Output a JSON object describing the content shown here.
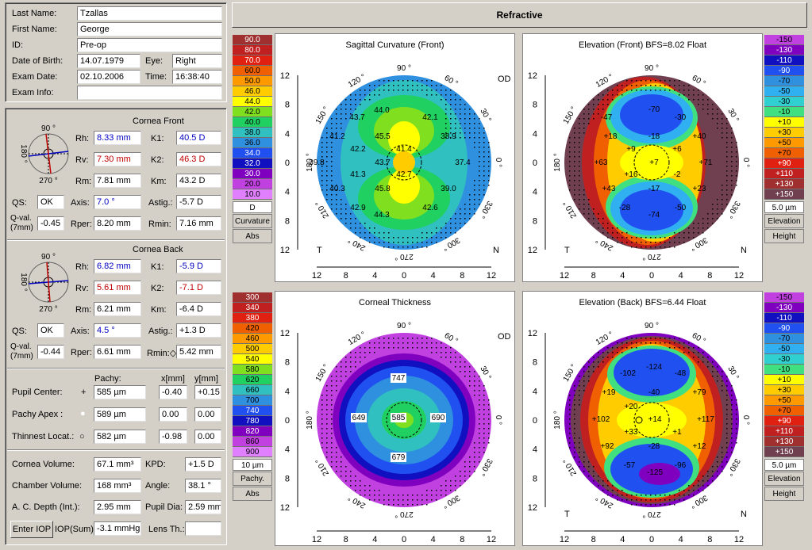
{
  "patient": {
    "last_name_label": "Last Name:",
    "last_name": "Tzallas",
    "first_name_label": "First Name:",
    "first_name": "George",
    "id_label": "ID:",
    "id": "Pre-op",
    "dob_label": "Date of Birth:",
    "dob": "14.07.1979",
    "eye_label": "Eye:",
    "eye": "Right",
    "exam_date_label": "Exam Date:",
    "exam_date": "02.10.2006",
    "time_label": "Time:",
    "time": "16:38:40",
    "exam_info_label": "Exam Info:",
    "exam_info": ""
  },
  "cornea_front": {
    "title": "Cornea Front",
    "rh_label": "Rh:",
    "rh": "8.33 mm",
    "rv_label": "Rv:",
    "rv": "7.30 mm",
    "rm_label": "Rm:",
    "rm": "7.81 mm",
    "k1_label": "K1:",
    "k1": "40.5 D",
    "k2_label": "K2:",
    "k2": "46.3 D",
    "km_label": "Km:",
    "km": "43.2 D",
    "qs_label": "QS:",
    "qs": "OK",
    "axis_label": "Axis:",
    "axis": "7.0 °",
    "astig_label": "Astig.:",
    "astig": "-5.7 D",
    "qval_label": "Q-val.",
    "qval_sub": "(7mm)",
    "qval": "-0.45",
    "rper_label": "Rper:",
    "rper": "8.20 mm",
    "rmin_label": "Rmin:",
    "rmin": "7.16 mm",
    "compass": {
      "top": "90 °",
      "left": "180 °",
      "bottom": "270 °"
    }
  },
  "cornea_back": {
    "title": "Cornea Back",
    "rh_label": "Rh:",
    "rh": "6.82 mm",
    "rv_label": "Rv:",
    "rv": "5.61 mm",
    "rm_label": "Rm:",
    "rm": "6.21 mm",
    "k1_label": "K1:",
    "k1": "-5.9 D",
    "k2_label": "K2:",
    "k2": "-7.1 D",
    "km_label": "Km:",
    "km": "-6.4 D",
    "qs_label": "QS:",
    "qs": "OK",
    "axis_label": "Axis:",
    "axis": "4.5 °",
    "astig_label": "Astig.:",
    "astig": "+1.3 D",
    "qval_label": "Q-val.",
    "qval_sub": "(7mm)",
    "qval": "-0.44",
    "rper_label": "Rper:",
    "rper": "6.61 mm",
    "rmin_label": "Rmin:◇",
    "rmin": "5.42 mm",
    "compass": {
      "top": "90 °",
      "left": "180 °",
      "bottom": "270 °"
    }
  },
  "pachy": {
    "col_pachy": "Pachy:",
    "col_x": "x[mm]",
    "col_y": "y[mm]",
    "pupil_label": "Pupil Center:",
    "pupil_mark": "+",
    "pupil_val": "585 µm",
    "pupil_x": "-0.40",
    "pupil_y": "+0.15",
    "apex_label": "Pachy Apex :",
    "apex_mark": "●",
    "apex_val": "589 µm",
    "apex_x": "0.00",
    "apex_y": "0.00",
    "thin_label": "Thinnest Locat.:",
    "thin_mark": "○",
    "thin_val": "582 µm",
    "thin_x": "-0.98",
    "thin_y": "0.00"
  },
  "volumes": {
    "cv_label": "Cornea Volume:",
    "cv": "67.1 mm³",
    "kpd_label": "KPD:",
    "kpd": "+1.5 D",
    "chv_label": "Chamber Volume:",
    "chv": "168 mm³",
    "angle_label": "Angle:",
    "angle": "38.1 °",
    "acd_label": "A. C. Depth (Int.):",
    "acd": "2.95 mm",
    "pupil_dia_label": "Pupil Dia:",
    "pupil_dia": "2.59 mm",
    "enter_iop": "Enter IOP",
    "iop_label": "IOP(Sum):",
    "iop": "-3.1 mmHg",
    "lens_label": "Lens Th.:",
    "lens": ""
  },
  "header": {
    "title": "Refractive"
  },
  "scales": {
    "curvature": {
      "values": [
        "90.0",
        "80.0",
        "70.0",
        "60.0",
        "50.0",
        "46.0",
        "44.0",
        "42.0",
        "40.0",
        "38.0",
        "36.0",
        "34.0",
        "32.0",
        "30.0",
        "20.0",
        "10.0"
      ],
      "unit": "D",
      "cap1": "Curvature",
      "cap2": "Abs",
      "colors": [
        "#a03030",
        "#c02020",
        "#e02010",
        "#f06000",
        "#ff9900",
        "#ffcc00",
        "#ffff00",
        "#80e020",
        "#20d060",
        "#30c0c0",
        "#3090e0",
        "#2050f0",
        "#1010c0",
        "#8000c0",
        "#c040e0",
        "#e080ff"
      ]
    },
    "elev_front": {
      "values": [
        "-150",
        "-130",
        "-110",
        "-90",
        "-70",
        "-50",
        "-30",
        "-10",
        "+10",
        "+30",
        "+50",
        "+70",
        "+90",
        "+110",
        "+130",
        "+150"
      ],
      "unit": "5.0 µm",
      "cap1": "Elevation",
      "cap2": "Height",
      "colors": [
        "#c040e0",
        "#8000c0",
        "#1010c0",
        "#2050f0",
        "#3090e0",
        "#30b0f0",
        "#30d0d0",
        "#40e080",
        "#ffff00",
        "#ffcc00",
        "#ff9900",
        "#f06000",
        "#e02010",
        "#c02020",
        "#a03030",
        "#704050"
      ]
    },
    "pachy": {
      "values": [
        "300",
        "340",
        "380",
        "420",
        "460",
        "500",
        "540",
        "580",
        "620",
        "660",
        "700",
        "740",
        "780",
        "820",
        "860",
        "900"
      ],
      "unit": "10 µm",
      "cap1": "Pachy.",
      "cap2": "Abs",
      "colors": [
        "#a03030",
        "#c02020",
        "#e02010",
        "#f06000",
        "#ff9900",
        "#ffcc00",
        "#ffff00",
        "#80e020",
        "#20d060",
        "#30c0c0",
        "#3090e0",
        "#2050f0",
        "#1010c0",
        "#8000c0",
        "#c040e0",
        "#e080ff"
      ]
    },
    "elev_back": {
      "values": [
        "-150",
        "-130",
        "-110",
        "-90",
        "-70",
        "-50",
        "-30",
        "-10",
        "+10",
        "+30",
        "+50",
        "+70",
        "+90",
        "+110",
        "+130",
        "+150"
      ],
      "unit": "5.0 µm",
      "cap1": "Elevation",
      "cap2": "Height",
      "colors": [
        "#c040e0",
        "#8000c0",
        "#1010c0",
        "#2050f0",
        "#3090e0",
        "#30b0f0",
        "#30d0d0",
        "#40e080",
        "#ffff00",
        "#ffcc00",
        "#ff9900",
        "#f06000",
        "#e02010",
        "#c02020",
        "#a03030",
        "#704050"
      ]
    }
  },
  "maps": {
    "sagittal": {
      "title": "Sagittal Curvature (Front)",
      "od": "OD",
      "t": "T",
      "n": "N",
      "labels": [
        "44.0",
        "43.7",
        "42.1",
        "41.2",
        "45.5",
        "38.9",
        "42.2",
        "41.4",
        "39.8",
        "43.7",
        "37.4",
        "41.3",
        "42.7",
        "40.3",
        "45.8",
        "39.0",
        "42.9",
        "42.6",
        "44.3"
      ]
    },
    "elev_front": {
      "title": "Elevation (Front)  BFS=8.02 Float",
      "t": "T",
      "n": "N",
      "labels": [
        "-70",
        "-47",
        "-30",
        "-18",
        "+18",
        "+9",
        "+6",
        "+40",
        "+63",
        "+7",
        "+71",
        "+16",
        "-2",
        "+43",
        "-17",
        "+23",
        "-28",
        "-50",
        "-74"
      ]
    },
    "pachy": {
      "title": "Corneal Thickness",
      "od": "OD",
      "labels": [
        "747",
        "649",
        "585",
        "690",
        "679"
      ]
    },
    "elev_back": {
      "title": "Elevation (Back)  BFS=6.44 Float",
      "t": "T",
      "n": "N",
      "labels": [
        "-124",
        "-102",
        "-48",
        "+19",
        "-40",
        "+79",
        "+20",
        "+14",
        "+102",
        "+117",
        "+33",
        "+1",
        "+92",
        "-28",
        "+12",
        "-57",
        "-96",
        "-125"
      ]
    },
    "axes": {
      "deg90": "90 °",
      "deg60": "60 °",
      "deg120": "120 °",
      "deg150": "150 °",
      "deg30": "30 °",
      "deg180": "180 °",
      "deg0": "0 °",
      "deg210": "210 °",
      "deg330": "330 °",
      "deg240": "240 °",
      "deg300": "300 °",
      "deg270": "270 °",
      "ticks_y": [
        "12",
        "8",
        "4",
        "0",
        "4",
        "8",
        "12"
      ],
      "ticks_x": [
        "12",
        "8",
        "4",
        "0",
        "4",
        "8",
        "12"
      ]
    }
  }
}
